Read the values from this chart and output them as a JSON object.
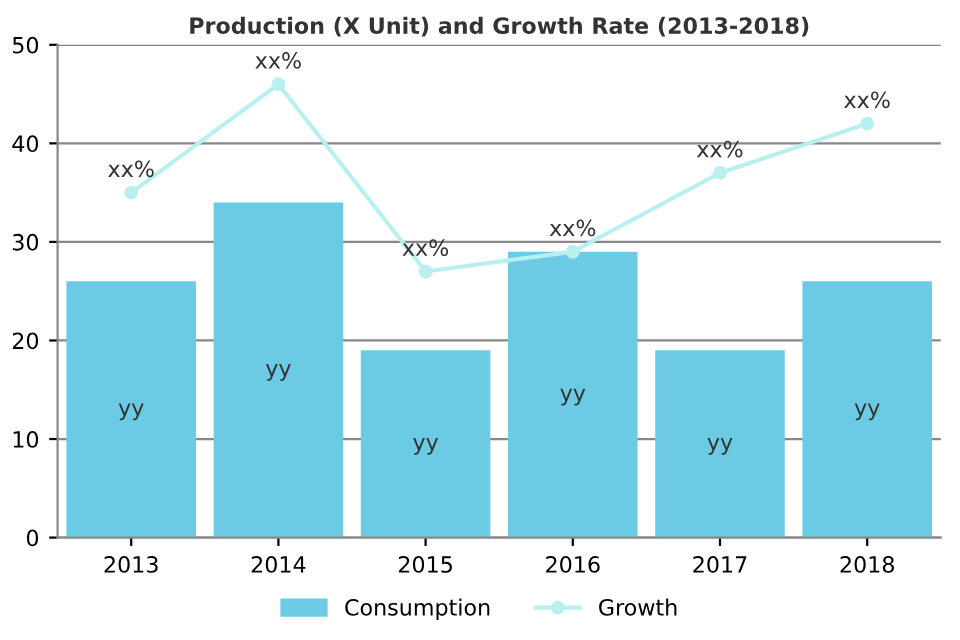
{
  "chart_data": {
    "type": "bar",
    "title": "Production (X Unit) and Growth Rate (2013-2018)",
    "categories": [
      "2013",
      "2014",
      "2015",
      "2016",
      "2017",
      "2018"
    ],
    "series": [
      {
        "name": "Consumption",
        "color": "#6bcbe5",
        "values": [
          26,
          34,
          19,
          29,
          19,
          26
        ],
        "value_labels": [
          "yy",
          "yy",
          "yy",
          "yy",
          "yy",
          "yy"
        ]
      },
      {
        "name": "Growth",
        "type": "line",
        "color": "#b8f0f0",
        "values": [
          35,
          46,
          27,
          29,
          37,
          42
        ],
        "value_labels": [
          "xx%",
          "xx%",
          "xx%",
          "xx%",
          "xx%",
          "xx%"
        ]
      }
    ],
    "ylim": [
      0,
      50
    ],
    "yticks": [
      0,
      10,
      20,
      30,
      40,
      50
    ],
    "grid": "y",
    "legend": "bottom",
    "marker": "circle",
    "line_style": "solid"
  }
}
